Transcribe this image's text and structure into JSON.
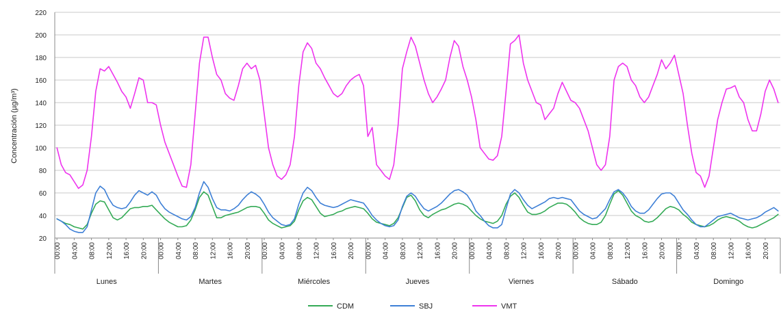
{
  "chart_data": {
    "type": "line",
    "title": "",
    "ylabel": "Concentración (µg/m³)",
    "xlabel": "",
    "ylim": [
      20,
      220
    ],
    "yticks": [
      20,
      40,
      60,
      80,
      100,
      120,
      140,
      160,
      180,
      200,
      220
    ],
    "grid": true,
    "legend_position": "bottom-center",
    "hour_ticks": [
      "00:00",
      "04:00",
      "08:00",
      "12:00",
      "16:00",
      "20:00"
    ],
    "days": [
      "Lunes",
      "Martes",
      "Miércoles",
      "Jueves",
      "Viernes",
      "Sábado",
      "Domingo"
    ],
    "x": "hourly, 0-167 (7 days × 24 h)",
    "series": [
      {
        "name": "CDM",
        "color": "#33aa55",
        "values": [
          37,
          35,
          33,
          32,
          30,
          29,
          28,
          32,
          42,
          50,
          53,
          52,
          45,
          38,
          36,
          38,
          42,
          46,
          47,
          47,
          48,
          48,
          49,
          45,
          41,
          37,
          34,
          32,
          30,
          30,
          31,
          36,
          45,
          56,
          61,
          58,
          48,
          38,
          38,
          40,
          41,
          42,
          43,
          45,
          47,
          48,
          48,
          47,
          42,
          36,
          33,
          31,
          29,
          30,
          31,
          35,
          45,
          53,
          56,
          54,
          48,
          42,
          39,
          40,
          41,
          43,
          44,
          46,
          47,
          48,
          47,
          46,
          42,
          37,
          34,
          33,
          32,
          31,
          33,
          38,
          47,
          56,
          58,
          53,
          45,
          40,
          38,
          41,
          43,
          45,
          46,
          48,
          50,
          51,
          50,
          48,
          44,
          40,
          37,
          35,
          34,
          33,
          35,
          40,
          50,
          57,
          60,
          56,
          49,
          43,
          41,
          41,
          42,
          44,
          47,
          49,
          51,
          51,
          50,
          47,
          43,
          38,
          35,
          33,
          32,
          32,
          34,
          40,
          50,
          59,
          62,
          58,
          51,
          44,
          40,
          38,
          35,
          34,
          35,
          38,
          42,
          46,
          48,
          47,
          45,
          41,
          38,
          34,
          32,
          31,
          30,
          31,
          33,
          36,
          38,
          39,
          38,
          37,
          35,
          32,
          30,
          29,
          30,
          32,
          34,
          36,
          38,
          41
        ]
      },
      {
        "name": "SBJ",
        "color": "#3d7fd6",
        "values": [
          37,
          35,
          32,
          28,
          26,
          25,
          25,
          30,
          45,
          60,
          66,
          63,
          55,
          49,
          47,
          46,
          47,
          52,
          58,
          62,
          60,
          58,
          61,
          58,
          51,
          46,
          43,
          41,
          39,
          37,
          36,
          39,
          47,
          60,
          70,
          65,
          55,
          47,
          45,
          45,
          44,
          46,
          49,
          54,
          58,
          61,
          59,
          56,
          50,
          43,
          38,
          35,
          32,
          31,
          32,
          37,
          50,
          60,
          65,
          62,
          56,
          51,
          49,
          48,
          47,
          48,
          50,
          52,
          54,
          53,
          52,
          51,
          46,
          40,
          36,
          33,
          31,
          30,
          31,
          36,
          48,
          57,
          60,
          57,
          51,
          46,
          44,
          46,
          48,
          51,
          55,
          59,
          62,
          63,
          61,
          58,
          52,
          44,
          40,
          35,
          31,
          29,
          29,
          32,
          46,
          59,
          63,
          60,
          54,
          49,
          46,
          48,
          50,
          52,
          55,
          56,
          55,
          56,
          55,
          54,
          49,
          44,
          41,
          39,
          37,
          38,
          42,
          46,
          54,
          61,
          63,
          60,
          55,
          48,
          44,
          42,
          42,
          45,
          50,
          55,
          59,
          60,
          60,
          57,
          51,
          45,
          41,
          36,
          32,
          30,
          30,
          33,
          36,
          39,
          40,
          41,
          42,
          40,
          38,
          37,
          36,
          37,
          38,
          40,
          43,
          45,
          47,
          44
        ]
      },
      {
        "name": "VMT",
        "color": "#ee33ee",
        "values": [
          100,
          85,
          78,
          76,
          70,
          64,
          67,
          80,
          110,
          150,
          170,
          168,
          172,
          165,
          158,
          150,
          145,
          135,
          148,
          162,
          160,
          140,
          140,
          138,
          120,
          105,
          95,
          85,
          75,
          66,
          65,
          85,
          130,
          175,
          198,
          198,
          180,
          165,
          160,
          148,
          144,
          142,
          155,
          170,
          175,
          170,
          173,
          160,
          130,
          100,
          85,
          75,
          72,
          76,
          85,
          110,
          155,
          185,
          193,
          188,
          175,
          170,
          162,
          155,
          148,
          145,
          148,
          155,
          160,
          163,
          165,
          155,
          110,
          118,
          85,
          80,
          75,
          72,
          85,
          120,
          170,
          185,
          198,
          190,
          175,
          160,
          148,
          140,
          145,
          152,
          160,
          180,
          195,
          190,
          172,
          160,
          145,
          125,
          100,
          95,
          90,
          89,
          93,
          110,
          150,
          192,
          195,
          200,
          175,
          160,
          150,
          140,
          138,
          125,
          130,
          135,
          148,
          158,
          150,
          142,
          140,
          135,
          125,
          115,
          100,
          85,
          80,
          85,
          110,
          160,
          172,
          175,
          172,
          160,
          155,
          145,
          140,
          145,
          155,
          165,
          178,
          170,
          175,
          182,
          165,
          148,
          120,
          95,
          78,
          75,
          65,
          75,
          100,
          125,
          140,
          152,
          153,
          155,
          145,
          140,
          125,
          115,
          115,
          130,
          150,
          160,
          152,
          140
        ]
      }
    ]
  }
}
